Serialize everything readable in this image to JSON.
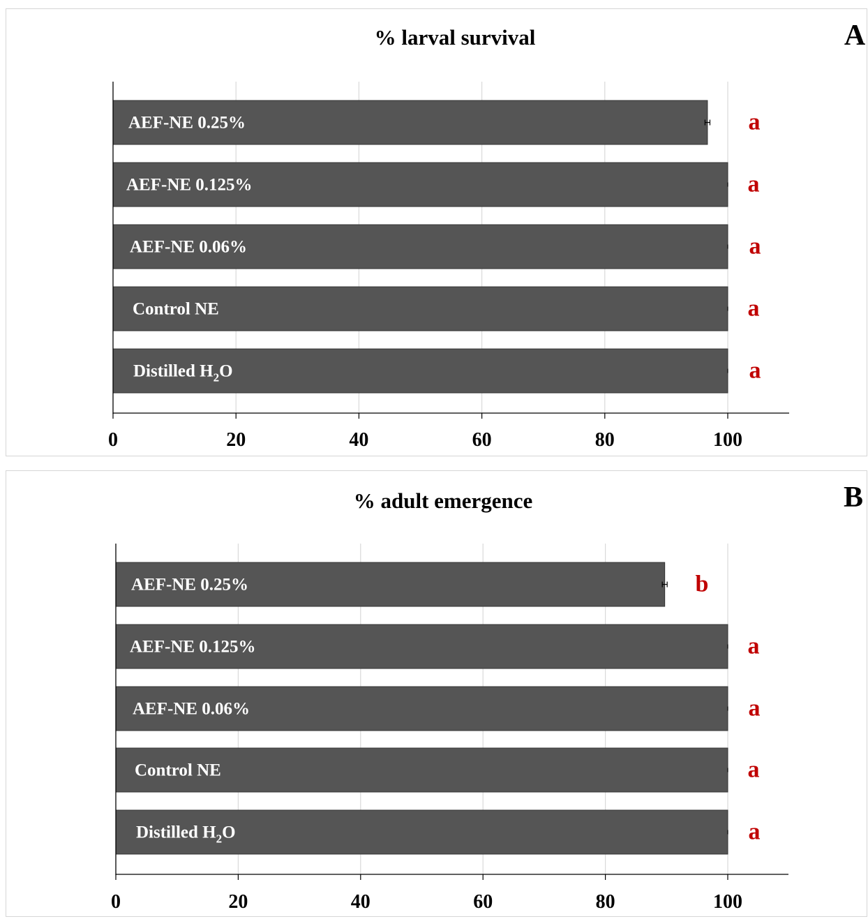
{
  "colors": {
    "bar_fill": "#555555",
    "bar_stroke": "#333333",
    "grid": "#d9d9d9",
    "axis": "#000000",
    "significance": "#c00000",
    "bar_label": "#ffffff"
  },
  "chart_data": [
    {
      "type": "bar",
      "orientation": "horizontal",
      "panel": "A",
      "title": "% larval survival",
      "xlim": [
        0,
        110
      ],
      "xticks": [
        0,
        20,
        40,
        60,
        80,
        100
      ],
      "grid": true,
      "categories": [
        {
          "prefix": "AEF-NE 0.25%",
          "sub": "",
          "suffix": ""
        },
        {
          "prefix": "AEF-NE 0.125%",
          "sub": "",
          "suffix": ""
        },
        {
          "prefix": "AEF-NE 0.06%",
          "sub": "",
          "suffix": ""
        },
        {
          "prefix": "Control NE",
          "sub": "",
          "suffix": ""
        },
        {
          "prefix": "Distilled H",
          "sub": "2",
          "suffix": "O"
        }
      ],
      "values": [
        96.7,
        100,
        100,
        100,
        100
      ],
      "errors": [
        0.4,
        0,
        0,
        0,
        0
      ],
      "significance": [
        "a",
        "a",
        "a",
        "a",
        "a"
      ]
    },
    {
      "type": "bar",
      "orientation": "horizontal",
      "panel": "B",
      "title": "% adult emergence",
      "xlim": [
        0,
        110
      ],
      "xticks": [
        0,
        20,
        40,
        60,
        80,
        100
      ],
      "grid": true,
      "categories": [
        {
          "prefix": "AEF-NE 0.25%",
          "sub": "",
          "suffix": ""
        },
        {
          "prefix": "AEF-NE 0.125%",
          "sub": "",
          "suffix": ""
        },
        {
          "prefix": "AEF-NE 0.06%",
          "sub": "",
          "suffix": ""
        },
        {
          "prefix": "Control NE",
          "sub": "",
          "suffix": ""
        },
        {
          "prefix": "Distilled H",
          "sub": "2",
          "suffix": "O"
        }
      ],
      "values": [
        89.7,
        100,
        100,
        100,
        100
      ],
      "errors": [
        0.4,
        0,
        0,
        0,
        0
      ],
      "significance": [
        "b",
        "a",
        "a",
        "a",
        "a"
      ]
    }
  ]
}
